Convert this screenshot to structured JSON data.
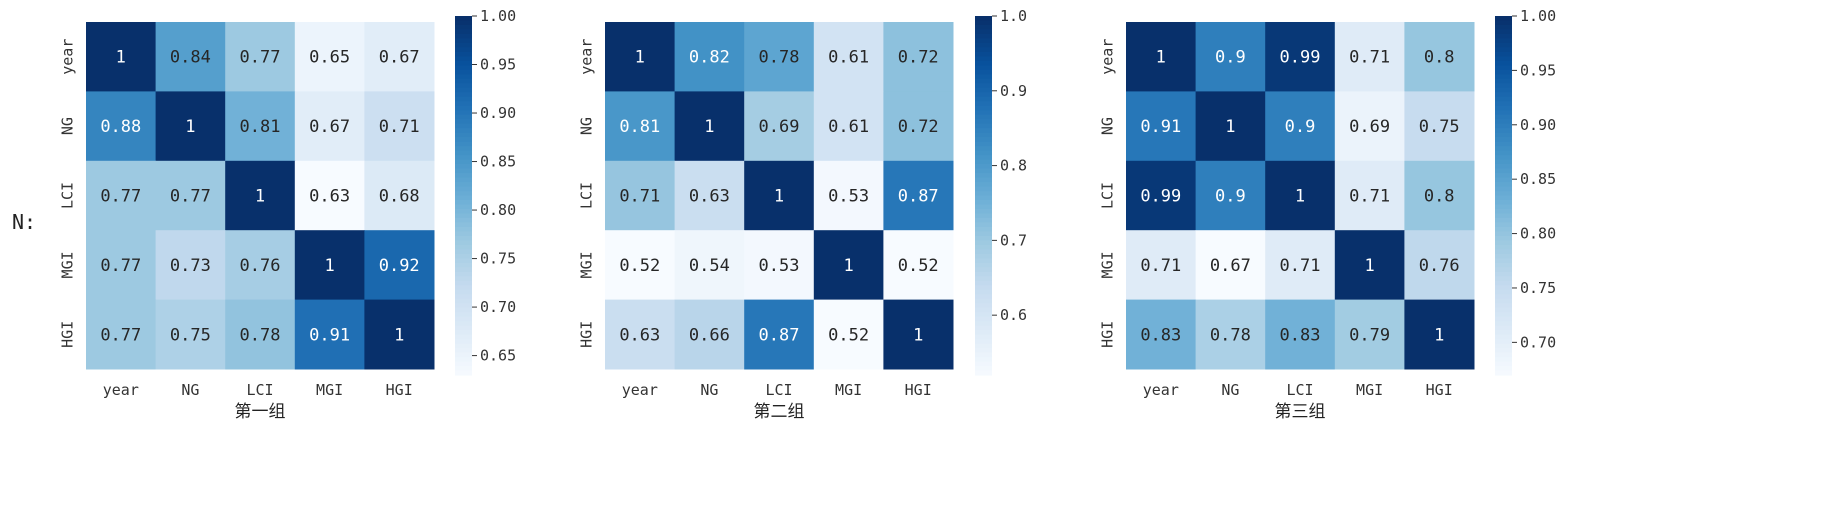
{
  "row_label": "N:",
  "colors": {
    "scale": [
      "#f7fbff",
      "#deebf7",
      "#c6dbef",
      "#9ecae1",
      "#6baed6",
      "#4292c6",
      "#2171b5",
      "#08519c",
      "#08306b"
    ],
    "dark_text": "#262626",
    "light_text": "#ffffff"
  },
  "chart_data": [
    {
      "type": "heatmap",
      "xlabel": "第一组",
      "x_categories": [
        "year",
        "NG",
        "LCI",
        "MGI",
        "HGI"
      ],
      "y_categories": [
        "year",
        "NG",
        "LCI",
        "MGI",
        "HGI"
      ],
      "values": [
        [
          1,
          0.84,
          0.77,
          0.65,
          0.67
        ],
        [
          0.88,
          1,
          0.81,
          0.67,
          0.71
        ],
        [
          0.77,
          0.77,
          1,
          0.63,
          0.68
        ],
        [
          0.77,
          0.73,
          0.76,
          1,
          0.92
        ],
        [
          0.77,
          0.75,
          0.78,
          0.91,
          1
        ]
      ],
      "value_labels": [
        [
          "1",
          "0.84",
          "0.77",
          "0.65",
          "0.67"
        ],
        [
          "0.88",
          "1",
          "0.81",
          "0.67",
          "0.71"
        ],
        [
          "0.77",
          "0.77",
          "1",
          "0.63",
          "0.68"
        ],
        [
          "0.77",
          "0.73",
          "0.76",
          "1",
          "0.92"
        ],
        [
          "0.77",
          "0.75",
          "0.78",
          "0.91",
          "1"
        ]
      ],
      "colorbar_range": [
        0.63,
        1.0
      ],
      "colorbar_ticks": [
        1.0,
        0.95,
        0.9,
        0.85,
        0.8,
        0.75,
        0.7,
        0.65
      ],
      "colorbar_tick_labels": [
        "1.00",
        "0.95",
        "0.90",
        "0.85",
        "0.80",
        "0.75",
        "0.70",
        "0.65"
      ]
    },
    {
      "type": "heatmap",
      "xlabel": "第二组",
      "x_categories": [
        "year",
        "NG",
        "LCI",
        "MGI",
        "HGI"
      ],
      "y_categories": [
        "year",
        "NG",
        "LCI",
        "MGI",
        "HGI"
      ],
      "values": [
        [
          1,
          0.82,
          0.78,
          0.61,
          0.72
        ],
        [
          0.81,
          1,
          0.69,
          0.61,
          0.72
        ],
        [
          0.71,
          0.63,
          1,
          0.53,
          0.87
        ],
        [
          0.52,
          0.54,
          0.53,
          1,
          0.52
        ],
        [
          0.63,
          0.66,
          0.87,
          0.52,
          1
        ]
      ],
      "value_labels": [
        [
          "1",
          "0.82",
          "0.78",
          "0.61",
          "0.72"
        ],
        [
          "0.81",
          "1",
          "0.69",
          "0.61",
          "0.72"
        ],
        [
          "0.71",
          "0.63",
          "1",
          "0.53",
          "0.87"
        ],
        [
          "0.52",
          "0.54",
          "0.53",
          "1",
          "0.52"
        ],
        [
          "0.63",
          "0.66",
          "0.87",
          "0.52",
          "1"
        ]
      ],
      "colorbar_range": [
        0.52,
        1.0
      ],
      "colorbar_ticks": [
        1.0,
        0.9,
        0.8,
        0.7,
        0.6
      ],
      "colorbar_tick_labels": [
        "1.0",
        "0.9",
        "0.8",
        "0.7",
        "0.6"
      ]
    },
    {
      "type": "heatmap",
      "xlabel": "第三组",
      "x_categories": [
        "year",
        "NG",
        "LCI",
        "MGI",
        "HGI"
      ],
      "y_categories": [
        "year",
        "NG",
        "LCI",
        "MGI",
        "HGI"
      ],
      "values": [
        [
          1,
          0.9,
          0.99,
          0.71,
          0.8
        ],
        [
          0.91,
          1,
          0.9,
          0.69,
          0.75
        ],
        [
          0.99,
          0.9,
          1,
          0.71,
          0.8
        ],
        [
          0.71,
          0.67,
          0.71,
          1,
          0.76
        ],
        [
          0.83,
          0.78,
          0.83,
          0.79,
          1
        ]
      ],
      "value_labels": [
        [
          "1",
          "0.9",
          "0.99",
          "0.71",
          "0.8"
        ],
        [
          "0.91",
          "1",
          "0.9",
          "0.69",
          "0.75"
        ],
        [
          "0.99",
          "0.9",
          "1",
          "0.71",
          "0.8"
        ],
        [
          "0.71",
          "0.67",
          "0.71",
          "1",
          "0.76"
        ],
        [
          "0.83",
          "0.78",
          "0.83",
          "0.79",
          "1"
        ]
      ],
      "colorbar_range": [
        0.67,
        1.0
      ],
      "colorbar_ticks": [
        1.0,
        0.95,
        0.9,
        0.85,
        0.8,
        0.75,
        0.7
      ],
      "colorbar_tick_labels": [
        "1.00",
        "0.95",
        "0.90",
        "0.85",
        "0.80",
        "0.75",
        "0.70"
      ]
    }
  ]
}
